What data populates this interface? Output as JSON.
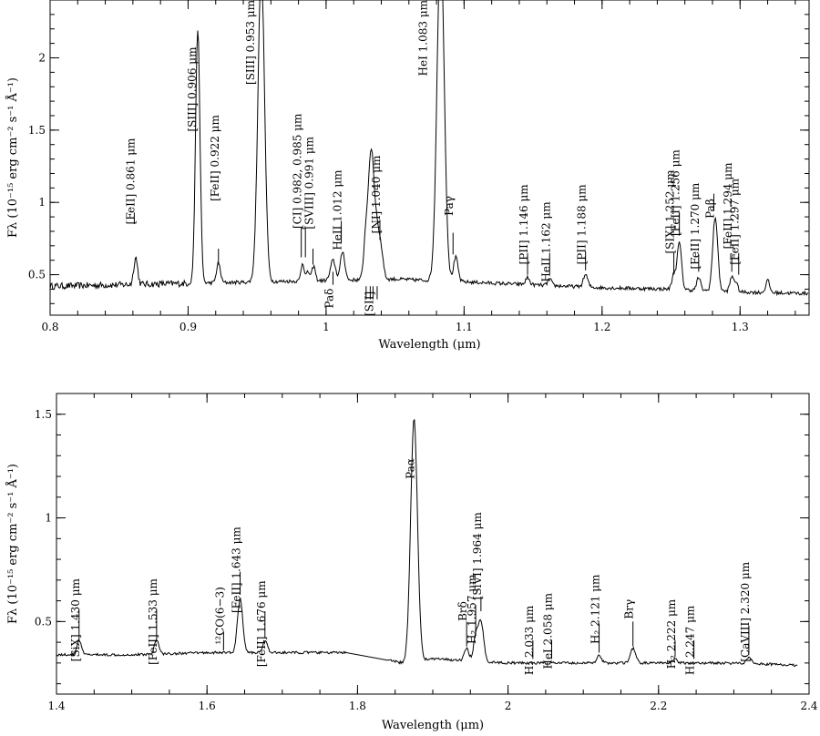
{
  "chart_data": [
    {
      "type": "line",
      "title": "",
      "xlabel": "Wavelength (μm)",
      "ylabel": "Fλ (10⁻¹⁵ erg cm⁻² s⁻¹ Å⁻¹)",
      "xlim": [
        0.8,
        1.35
      ],
      "ylim": [
        0.22,
        2.4
      ],
      "xticks": [
        {
          "value": 0.8,
          "label": "0.8"
        },
        {
          "value": 0.9,
          "label": "0.9"
        },
        {
          "value": 1.0,
          "label": "1"
        },
        {
          "value": 1.1,
          "label": "1.1"
        },
        {
          "value": 1.2,
          "label": "1.2"
        },
        {
          "value": 1.3,
          "label": "1.3"
        }
      ],
      "yticks": [
        {
          "value": 0.5,
          "label": "0.5"
        },
        {
          "value": 1.0,
          "label": "1"
        },
        {
          "value": 1.5,
          "label": "1.5"
        },
        {
          "value": 2.0,
          "label": "2"
        }
      ],
      "grid": false,
      "continuum": [
        [
          0.8,
          0.42
        ],
        [
          0.85,
          0.43
        ],
        [
          0.9,
          0.44
        ],
        [
          0.95,
          0.45
        ],
        [
          1.0,
          0.46
        ],
        [
          1.05,
          0.47
        ],
        [
          1.1,
          0.45
        ],
        [
          1.15,
          0.43
        ],
        [
          1.2,
          0.41
        ],
        [
          1.25,
          0.4
        ],
        [
          1.3,
          0.38
        ],
        [
          1.35,
          0.37
        ]
      ],
      "features": [
        {
          "x": 0.862,
          "peak": 0.62,
          "w": 0.0014
        },
        {
          "x": 0.907,
          "peak": 2.2,
          "w": 0.0016
        },
        {
          "x": 0.922,
          "peak": 0.58,
          "w": 0.0014
        },
        {
          "x": 0.953,
          "peak": 2.6,
          "w": 0.0024
        },
        {
          "x": 0.983,
          "peak": 0.58,
          "w": 0.0012
        },
        {
          "x": 0.987,
          "peak": 0.52,
          "w": 0.0012
        },
        {
          "x": 0.991,
          "peak": 0.56,
          "w": 0.0012
        },
        {
          "x": 1.005,
          "peak": 0.6,
          "w": 0.0018
        },
        {
          "x": 1.012,
          "peak": 0.66,
          "w": 0.0016
        },
        {
          "x": 1.029,
          "peak": 0.8,
          "w": 0.0016
        },
        {
          "x": 1.032,
          "peak": 1.05,
          "w": 0.0016
        },
        {
          "x": 1.034,
          "peak": 0.95,
          "w": 0.0016
        },
        {
          "x": 1.037,
          "peak": 0.78,
          "w": 0.0016
        },
        {
          "x": 1.04,
          "peak": 0.65,
          "w": 0.0016
        },
        {
          "x": 1.083,
          "peak": 2.8,
          "w": 0.0026
        },
        {
          "x": 1.094,
          "peak": 0.62,
          "w": 0.0016
        },
        {
          "x": 1.146,
          "peak": 0.48,
          "w": 0.0014
        },
        {
          "x": 1.162,
          "peak": 0.47,
          "w": 0.0014
        },
        {
          "x": 1.188,
          "peak": 0.5,
          "w": 0.0016
        },
        {
          "x": 1.252,
          "peak": 0.5,
          "w": 0.0014
        },
        {
          "x": 1.256,
          "peak": 0.72,
          "w": 0.0016
        },
        {
          "x": 1.27,
          "peak": 0.48,
          "w": 0.0014
        },
        {
          "x": 1.282,
          "peak": 0.9,
          "w": 0.0018
        },
        {
          "x": 1.294,
          "peak": 0.48,
          "w": 0.0014
        },
        {
          "x": 1.297,
          "peak": 0.44,
          "w": 0.0014
        },
        {
          "x": 1.32,
          "peak": 0.46,
          "w": 0.0014
        }
      ],
      "annotations": [
        {
          "x": 0.861,
          "text": "[FeII] 0.861 μm",
          "y_top": 1.42,
          "rot": true,
          "tick": [
            0.85,
            0.93
          ]
        },
        {
          "x": 0.9055,
          "text": "[SIII] 0.906 μm",
          "y_top": 2.05,
          "rot": true
        },
        {
          "x": 0.922,
          "text": "[FeII] 0.922 μm",
          "y_top": 1.58,
          "rot": true,
          "tick": [
            0.57,
            0.68
          ]
        },
        {
          "x": 0.948,
          "text": "[SIII] 0.953 μm",
          "y_top": 2.4,
          "rot": true
        },
        {
          "x": 0.982,
          "text": "[CI] 0.982, 0.985 μm",
          "y_top": 1.59,
          "rot": true
        },
        {
          "x": 0.9905,
          "text": "[SVIII] 0.991 μm",
          "y_top": 1.43,
          "rot": true,
          "tick": [
            0.57,
            0.68
          ]
        },
        {
          "x": 1.011,
          "text": "HeII 1.012 μm",
          "y_top": 1.2,
          "rot": true,
          "tick": [
            0.72,
            0.87
          ]
        },
        {
          "x": 1.039,
          "text": "[NI] 1.040 μm",
          "y_top": 1.3,
          "rot": true,
          "tick": [
            0.74,
            0.88
          ]
        },
        {
          "x": 1.073,
          "text": "HeI 1.083 μm",
          "y_top": 2.4,
          "rot": true
        },
        {
          "x": 1.092,
          "text": "Paγ",
          "y_top": 1.02,
          "rot": true,
          "tick": [
            0.64,
            0.79
          ]
        },
        {
          "x": 1.146,
          "text": "[PII] 1.146 μm",
          "y_top": 1.1,
          "rot": true,
          "tick": [
            0.5,
            0.65
          ]
        },
        {
          "x": 1.162,
          "text": "HeII 1.162 μm",
          "y_top": 0.98,
          "rot": true,
          "tick": [
            0.5,
            0.65
          ]
        },
        {
          "x": 1.188,
          "text": "[PII] 1.188 μm",
          "y_top": 1.1,
          "rot": true,
          "tick": [
            0.53,
            0.66
          ]
        },
        {
          "x": 1.252,
          "text": "[SIX] 1.252 μm",
          "y_top": 1.2,
          "rot": true,
          "tick": [
            0.5,
            0.65
          ]
        },
        {
          "x": 1.256,
          "text": "[FeII] 1.256 μm",
          "y_top": 1.34,
          "rot": true,
          "tick": [
            0.77,
            0.93
          ]
        },
        {
          "x": 1.27,
          "text": "[FeII] 1.270 μm",
          "y_top": 1.11,
          "rot": true,
          "tick": [
            0.52,
            0.64
          ]
        },
        {
          "x": 1.281,
          "text": "Paβ",
          "y_top": 1.0,
          "rot": true,
          "tick": [
            0.94,
            1.06
          ]
        },
        {
          "x": 1.294,
          "text": "[FeII] 1.294 μm",
          "y_top": 1.25,
          "rot": true,
          "tick": [
            0.52,
            0.64
          ]
        },
        {
          "x": 1.299,
          "text": "[FeII] 1.297 μm",
          "y_top": 1.14,
          "rot": true,
          "tick": [
            0.5,
            0.65
          ]
        },
        {
          "x": 1.005,
          "text": "Paδ",
          "y_top": 0.38,
          "rot": true,
          "below": true
        },
        {
          "x": 1.034,
          "text": "[SII]",
          "y_top": 0.36,
          "rot": true,
          "below": true
        }
      ]
    },
    {
      "type": "line",
      "title": "",
      "xlabel": "Wavelength (μm)",
      "ylabel": "Fλ (10⁻¹⁵ erg cm⁻² s⁻¹ Å⁻¹)",
      "xlim": [
        1.4,
        2.4
      ],
      "ylim": [
        0.15,
        1.6
      ],
      "xticks": [
        {
          "value": 1.4,
          "label": "1.4"
        },
        {
          "value": 1.6,
          "label": "1.6"
        },
        {
          "value": 1.8,
          "label": "1.8"
        },
        {
          "value": 2.0,
          "label": "2"
        },
        {
          "value": 2.2,
          "label": "2.2"
        },
        {
          "value": 2.4,
          "label": "2.4"
        }
      ],
      "yticks": [
        {
          "value": 0.5,
          "label": "0.5"
        },
        {
          "value": 1.0,
          "label": "1"
        },
        {
          "value": 1.5,
          "label": "1.5"
        }
      ],
      "grid": false,
      "gap": [
        1.785,
        1.86
      ],
      "continuum": [
        [
          1.4,
          0.34
        ],
        [
          1.5,
          0.34
        ],
        [
          1.6,
          0.35
        ],
        [
          1.7,
          0.35
        ],
        [
          1.785,
          0.35
        ],
        [
          1.86,
          0.3
        ],
        [
          1.9,
          0.32
        ],
        [
          2.0,
          0.3
        ],
        [
          2.1,
          0.3
        ],
        [
          2.2,
          0.3
        ],
        [
          2.3,
          0.3
        ],
        [
          2.38,
          0.29
        ]
      ],
      "features": [
        {
          "x": 1.43,
          "peak": 0.41,
          "w": 0.003
        },
        {
          "x": 1.533,
          "peak": 0.41,
          "w": 0.003
        },
        {
          "x": 1.644,
          "peak": 0.61,
          "w": 0.0035
        },
        {
          "x": 1.677,
          "peak": 0.41,
          "w": 0.003
        },
        {
          "x": 1.8751,
          "peak": 1.48,
          "w": 0.0045
        },
        {
          "x": 1.945,
          "peak": 0.37,
          "w": 0.003
        },
        {
          "x": 1.957,
          "peak": 0.42,
          "w": 0.003
        },
        {
          "x": 1.964,
          "peak": 0.5,
          "w": 0.0035
        },
        {
          "x": 2.121,
          "peak": 0.34,
          "w": 0.003
        },
        {
          "x": 2.166,
          "peak": 0.37,
          "w": 0.0035
        },
        {
          "x": 2.222,
          "peak": 0.32,
          "w": 0.003
        },
        {
          "x": 2.32,
          "peak": 0.33,
          "w": 0.003
        }
      ],
      "annotations": [
        {
          "x": 1.43,
          "text": "[SiX] 1.430 μm",
          "y_top": 0.69,
          "rot": true,
          "tick": [
            0.41,
            0.56
          ]
        },
        {
          "x": 1.533,
          "text": "[FeII] 1.533 μm",
          "y_top": 0.69,
          "rot": true,
          "tick": [
            0.41,
            0.56
          ]
        },
        {
          "x": 1.622,
          "text": "¹²CO(6−3)",
          "y_top": 0.65,
          "rot": true,
          "tick": [
            0.36,
            0.45
          ]
        },
        {
          "x": 1.644,
          "text": "[FeII] 1.643 μm",
          "y_top": 0.94,
          "rot": true,
          "tick": [
            0.63,
            0.74
          ]
        },
        {
          "x": 1.677,
          "text": "[FeII] 1.676 μm",
          "y_top": 0.68,
          "rot": true,
          "tick": [
            0.42,
            0.55
          ]
        },
        {
          "x": 1.8751,
          "text": "Paα",
          "y_top": 1.27,
          "rot": true
        },
        {
          "x": 1.945,
          "text": "Brδ",
          "y_top": 0.58,
          "rot": true,
          "tick": [
            0.38,
            0.5
          ]
        },
        {
          "x": 1.957,
          "text": "H₂ 1.957 μm",
          "y_top": 0.71,
          "rot": true,
          "tick": [
            0.43,
            0.58
          ]
        },
        {
          "x": 1.964,
          "text": "[SiVI] 1.964 μm",
          "y_top": 1.01,
          "rot": true,
          "tick": [
            0.55,
            0.62
          ]
        },
        {
          "x": 2.033,
          "text": "H₂ 2.033 μm",
          "y_top": 0.56,
          "rot": true,
          "tick": [
            0.32,
            0.41
          ]
        },
        {
          "x": 2.058,
          "text": "HeI 2.058 μm",
          "y_top": 0.62,
          "rot": true,
          "tick": [
            0.32,
            0.41
          ]
        },
        {
          "x": 2.121,
          "text": "H₂ 2.121 μm",
          "y_top": 0.71,
          "rot": true,
          "tick": [
            0.35,
            0.49
          ]
        },
        {
          "x": 2.166,
          "text": "Brγ",
          "y_top": 0.59,
          "rot": true,
          "tick": [
            0.38,
            0.5
          ]
        },
        {
          "x": 2.222,
          "text": "H₂ 2.222 μm",
          "y_top": 0.59,
          "rot": true,
          "tick": [
            0.33,
            0.41
          ]
        },
        {
          "x": 2.247,
          "text": "H₂ 2.247 μm",
          "y_top": 0.56,
          "rot": true,
          "tick": [
            0.32,
            0.41
          ]
        },
        {
          "x": 2.32,
          "text": "[CaVIII] 2.320 μm",
          "y_top": 0.77,
          "rot": true,
          "tick": [
            0.34,
            0.48
          ]
        }
      ]
    }
  ]
}
